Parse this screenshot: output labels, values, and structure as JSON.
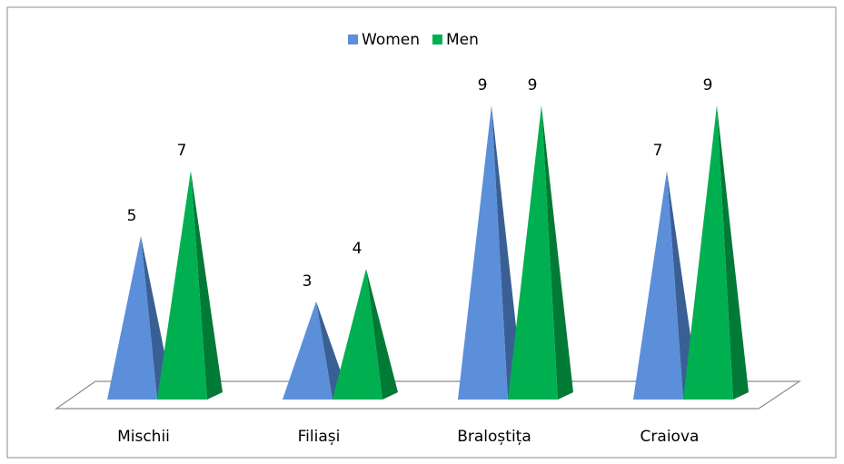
{
  "chart_data": {
    "type": "pyramid",
    "categories": [
      "Mischii",
      "Filiași",
      "Braloștița",
      "Craiova"
    ],
    "series": [
      {
        "name": "Women",
        "color": "#5b8fd9",
        "side_color": "#3a5f95",
        "values": [
          5,
          3,
          9,
          7
        ]
      },
      {
        "name": "Men",
        "color": "#00b050",
        "side_color": "#007a36",
        "values": [
          7,
          4,
          9,
          9
        ]
      }
    ],
    "legend": "top"
  }
}
